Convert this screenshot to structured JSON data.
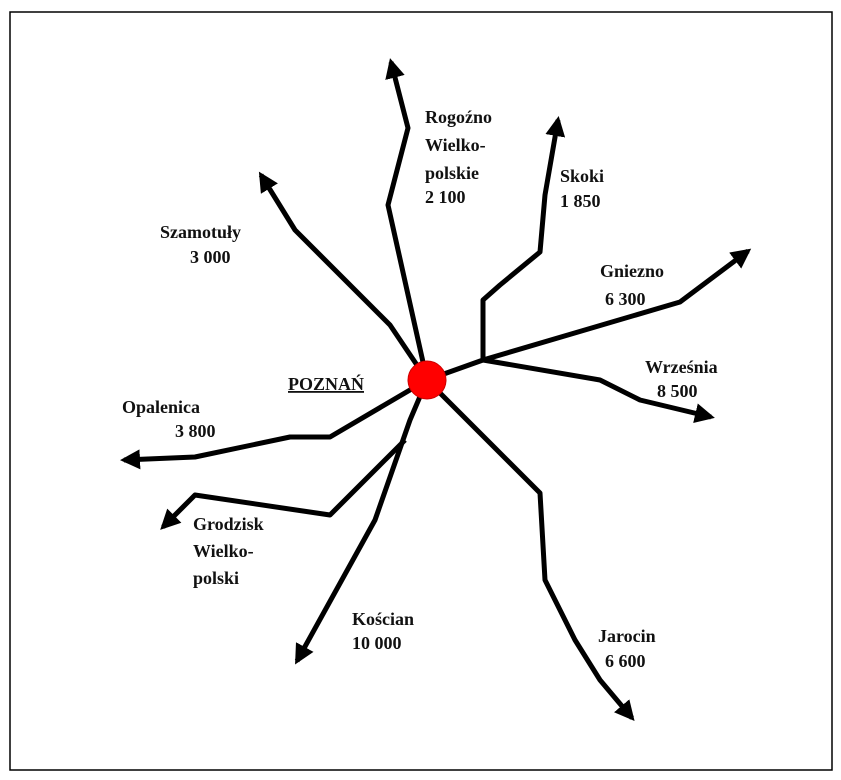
{
  "center": {
    "label": "POZNAŃ"
  },
  "routes": [
    {
      "name": [
        "Rogoźno",
        "Wielko-",
        "polskie"
      ],
      "value": "2 100"
    },
    {
      "name": [
        "Skoki"
      ],
      "value": "1 850"
    },
    {
      "name": [
        "Szamotuły"
      ],
      "value": "3 000"
    },
    {
      "name": [
        "Gniezno"
      ],
      "value": "6 300"
    },
    {
      "name": [
        "Września"
      ],
      "value": "8 500"
    },
    {
      "name": [
        "Opalenica"
      ],
      "value": "3 800"
    },
    {
      "name": [
        "Grodzisk",
        "Wielko-",
        "polski"
      ]
    },
    {
      "name": [
        "Kościan"
      ],
      "value": "10 000"
    },
    {
      "name": [
        "Jarocin"
      ],
      "value": "6 600"
    }
  ]
}
